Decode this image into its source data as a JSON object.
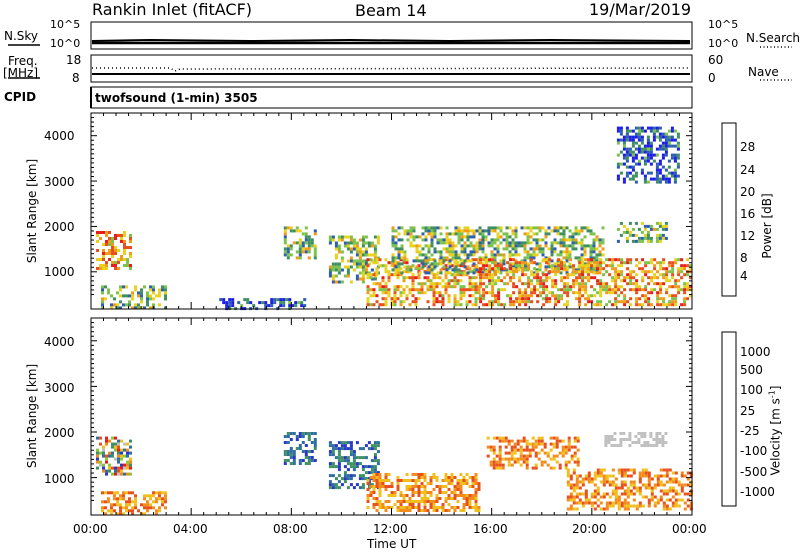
{
  "header": {
    "station": "Rankin Inlet (fitACF)",
    "beam": "Beam 14",
    "date": "19/Mar/2019"
  },
  "status_panels": {
    "nsky_label": "N.Sky",
    "nsearch_label": "N.Search",
    "nsky_ticks": [
      "10^5",
      "10^0"
    ],
    "nsearch_ticks": [
      "10^5",
      "10^0"
    ],
    "freq_label_1": "Freq.",
    "freq_label_2": "[MHz]",
    "freq_ticks": [
      "18",
      "8"
    ],
    "nave_label": "Nave",
    "nave_ticks": [
      "60",
      "0"
    ],
    "cpid_label": "CPID",
    "cpid_value": "twofsound (1-min) 3505"
  },
  "chart_data": [
    {
      "type": "heatmap",
      "title": "",
      "xlabel": "",
      "ylabel": "Slant Range [km]",
      "ylim": [
        180,
        4500
      ],
      "yticks": [
        "4000",
        "3000",
        "2000",
        "1000"
      ],
      "xlim_hours": [
        0,
        24
      ],
      "colorbar": {
        "label": "Power [dB]",
        "ticks": [
          "28",
          "24",
          "20",
          "16",
          "12",
          "8",
          "4"
        ],
        "colors": [
          "#1e1ee6",
          "#2e5fb0",
          "#3f8f62",
          "#7cc34c",
          "#e8d21e",
          "#f29a1c",
          "#e8501e",
          "#e81e1e"
        ]
      },
      "regions": [
        {
          "t": [
            0.2,
            1.6
          ],
          "r": [
            1050,
            1900
          ],
          "level": "high"
        },
        {
          "t": [
            0.4,
            3.0
          ],
          "r": [
            200,
            700
          ],
          "level": "mid"
        },
        {
          "t": [
            5.0,
            8.5
          ],
          "r": [
            200,
            420
          ],
          "level": "low"
        },
        {
          "t": [
            7.7,
            9.0
          ],
          "r": [
            1300,
            2000
          ],
          "level": "mid"
        },
        {
          "t": [
            9.5,
            11.5
          ],
          "r": [
            800,
            1800
          ],
          "level": "mid"
        },
        {
          "t": [
            11.0,
            15.5
          ],
          "r": [
            300,
            1300
          ],
          "level": "high"
        },
        {
          "t": [
            12.0,
            20.5
          ],
          "r": [
            1000,
            2000
          ],
          "level": "mid"
        },
        {
          "t": [
            15.5,
            24.0
          ],
          "r": [
            300,
            1300
          ],
          "level": "high"
        },
        {
          "t": [
            21.0,
            23.0
          ],
          "r": [
            1700,
            2100
          ],
          "level": "mid"
        },
        {
          "t": [
            21.0,
            23.5
          ],
          "r": [
            3000,
            4200
          ],
          "level": "low"
        }
      ]
    },
    {
      "type": "heatmap",
      "title": "",
      "xlabel": "Time UT",
      "ylabel": "Slant Range [km]",
      "ylim": [
        180,
        4500
      ],
      "yticks": [
        "4000",
        "3000",
        "2000",
        "1000"
      ],
      "xticks": [
        "00:00",
        "04:00",
        "08:00",
        "12:00",
        "16:00",
        "20:00",
        "00:00"
      ],
      "colorbar": {
        "label": "Velocity [m s",
        "label_sup": "-1",
        "label_end": "]",
        "ticks": [
          "1000",
          "500",
          "100",
          "25",
          "-25",
          "-100",
          "-500",
          "-1000"
        ],
        "colors": [
          "#2838c8",
          "#2e6ea0",
          "#3f8f62",
          "#84c83c",
          "#c0c0c0",
          "#f2c01e",
          "#f28c1c",
          "#e8501e",
          "#e81e1e"
        ]
      },
      "regions": [
        {
          "t": [
            0.2,
            1.6
          ],
          "r": [
            1050,
            1900
          ],
          "level": "mixed"
        },
        {
          "t": [
            0.4,
            3.0
          ],
          "r": [
            200,
            700
          ],
          "level": "neg"
        },
        {
          "t": [
            7.7,
            9.0
          ],
          "r": [
            1300,
            2000
          ],
          "level": "pos"
        },
        {
          "t": [
            9.5,
            11.5
          ],
          "r": [
            800,
            1800
          ],
          "level": "pos"
        },
        {
          "t": [
            11.0,
            15.5
          ],
          "r": [
            300,
            1100
          ],
          "level": "neg"
        },
        {
          "t": [
            15.8,
            19.5
          ],
          "r": [
            1200,
            1900
          ],
          "level": "neg"
        },
        {
          "t": [
            19.0,
            24.0
          ],
          "r": [
            300,
            1200
          ],
          "level": "neg"
        },
        {
          "t": [
            20.5,
            23.0
          ],
          "r": [
            1700,
            2000
          ],
          "level": "gray"
        }
      ]
    }
  ]
}
